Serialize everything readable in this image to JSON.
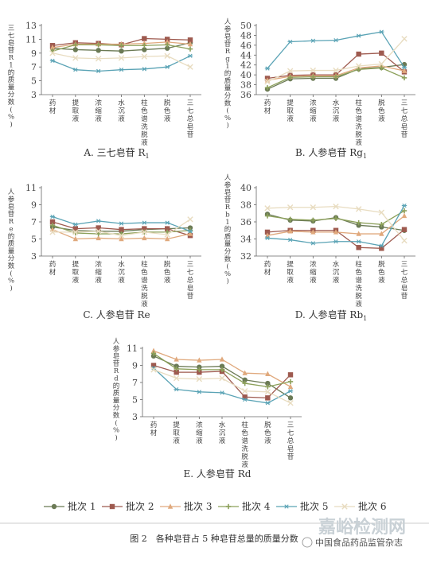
{
  "colors": {
    "batch1": "#6b7a55",
    "batch2": "#9e5a4f",
    "batch3": "#e0a97d",
    "batch4": "#8ca05a",
    "batch5": "#5aa3b5",
    "batch6": "#e8dcc0"
  },
  "legend": [
    "批次 1",
    "批次 2",
    "批次 3",
    "批次 4",
    "批次 5",
    "批次 6"
  ],
  "caption": "图 2　各种皂苷占 5 种皂苷总量的质量分数",
  "watermark": {
    "site": "嘉峪检测网",
    "source": "中国食品药品监管杂志"
  },
  "chart_data": [
    {
      "type": "line",
      "panel": "A",
      "title": "A. 三七皂苷 R",
      "title_sub": "1",
      "ylabel_lines": [
        "三七皂苷",
        "R1 的质量分数",
        "(%)"
      ],
      "categories": [
        "药材",
        "提取液",
        "浓缩液",
        "水沉液",
        "柱色谱洗脱液",
        "脱色液",
        "三七总皂苷"
      ],
      "ylim": [
        3,
        13
      ],
      "yticks": [
        3,
        5,
        7,
        9,
        11,
        13
      ],
      "series": [
        {
          "name": "批次 1",
          "values": [
            9.7,
            9.5,
            9.4,
            9.3,
            9.5,
            9.7,
            10.5
          ]
        },
        {
          "name": "批次 2",
          "values": [
            10.1,
            10.5,
            10.4,
            10.2,
            11.1,
            11.0,
            10.9
          ]
        },
        {
          "name": "批次 3",
          "values": [
            9.8,
            10.3,
            10.3,
            10.3,
            10.4,
            10.6,
            10.3
          ]
        },
        {
          "name": "批次 4",
          "values": [
            9.3,
            10.2,
            10.2,
            10.1,
            10.1,
            10.2,
            9.6
          ]
        },
        {
          "name": "批次 5",
          "values": [
            7.9,
            6.6,
            6.4,
            6.6,
            6.7,
            7.0,
            8.6
          ]
        },
        {
          "name": "批次 6",
          "values": [
            9.0,
            8.3,
            8.2,
            8.3,
            8.5,
            8.6,
            7.0
          ]
        }
      ]
    },
    {
      "type": "line",
      "panel": "B",
      "title": "B. 人参皂苷 Rg",
      "title_sub": "1",
      "ylabel_lines": [
        "人参皂苷",
        "Rg1 的质量分数",
        "(%)"
      ],
      "categories": [
        "药材",
        "提取液",
        "浓缩液",
        "水沉液",
        "柱色谱洗脱液",
        "脱色液",
        "三七总皂苷"
      ],
      "ylim": [
        36,
        50
      ],
      "yticks": [
        36,
        38,
        40,
        42,
        44,
        46,
        48,
        50
      ],
      "series": [
        {
          "name": "批次 1",
          "values": [
            37.1,
            39.2,
            39.3,
            39.3,
            41.2,
            41.5,
            42.1
          ]
        },
        {
          "name": "批次 2",
          "values": [
            39.3,
            39.9,
            40.0,
            40.0,
            44.2,
            44.4,
            40.6
          ]
        },
        {
          "name": "批次 3",
          "values": [
            38.9,
            39.7,
            39.8,
            39.8,
            41.4,
            41.8,
            40.8
          ]
        },
        {
          "name": "批次 4",
          "values": [
            37.4,
            39.5,
            39.6,
            39.6,
            41.1,
            41.4,
            39.4
          ]
        },
        {
          "name": "批次 5",
          "values": [
            41.3,
            46.7,
            46.9,
            47.0,
            47.9,
            48.7,
            41.5
          ]
        },
        {
          "name": "批次 6",
          "values": [
            38.6,
            40.8,
            40.9,
            40.9,
            41.8,
            42.2,
            47.3
          ]
        }
      ]
    },
    {
      "type": "line",
      "panel": "C",
      "title": "C. 人参皂苷 Re",
      "ylabel_lines": [
        "人参皂苷",
        "Re 的质量分数",
        "(%)"
      ],
      "categories": [
        "药材",
        "提取液",
        "浓缩液",
        "水沉液",
        "柱色谱洗脱液",
        "脱色液",
        "三七总皂苷"
      ],
      "ylim": [
        3,
        11
      ],
      "yticks": [
        3,
        5,
        7,
        9,
        11
      ],
      "series": [
        {
          "name": "批次 1",
          "values": [
            6.4,
            6.0,
            5.9,
            5.9,
            6.1,
            6.2,
            6.3
          ]
        },
        {
          "name": "批次 2",
          "values": [
            7.0,
            6.2,
            6.3,
            6.1,
            6.2,
            6.2,
            5.4
          ]
        },
        {
          "name": "批次 3",
          "values": [
            6.1,
            5.0,
            5.1,
            5.0,
            5.1,
            5.0,
            5.6
          ]
        },
        {
          "name": "批次 4",
          "values": [
            6.6,
            5.7,
            5.6,
            5.6,
            5.8,
            5.8,
            6.0
          ]
        },
        {
          "name": "批次 5",
          "values": [
            7.6,
            6.7,
            7.1,
            6.8,
            6.9,
            6.9,
            5.9
          ]
        },
        {
          "name": "批次 6",
          "values": [
            5.8,
            5.8,
            5.9,
            5.4,
            5.8,
            5.5,
            7.3
          ]
        }
      ]
    },
    {
      "type": "line",
      "panel": "D",
      "title": "D. 人参皂苷 Rb",
      "title_sub": "1",
      "ylabel_lines": [
        "人参皂苷",
        "Rb1 的质量分数",
        "(%)"
      ],
      "categories": [
        "药材",
        "提取液",
        "浓缩液",
        "水沉液",
        "柱色谱洗脱液",
        "脱色液",
        "三七总皂苷"
      ],
      "ylim": [
        32,
        40
      ],
      "yticks": [
        32,
        34,
        36,
        38,
        40
      ],
      "series": [
        {
          "name": "批次 1",
          "values": [
            36.9,
            36.2,
            36.1,
            36.5,
            35.6,
            35.4,
            35.0
          ]
        },
        {
          "name": "批次 2",
          "values": [
            34.8,
            35.0,
            35.0,
            35.0,
            33.0,
            32.9,
            35.1
          ]
        },
        {
          "name": "批次 3",
          "values": [
            34.4,
            34.9,
            34.8,
            34.8,
            34.6,
            34.6,
            36.7
          ]
        },
        {
          "name": "批次 4",
          "values": [
            36.7,
            36.3,
            36.2,
            36.4,
            35.9,
            35.7,
            37.3
          ]
        },
        {
          "name": "批次 5",
          "values": [
            34.1,
            33.9,
            33.5,
            33.7,
            33.7,
            33.2,
            37.9
          ]
        },
        {
          "name": "批次 6",
          "values": [
            37.6,
            37.7,
            37.7,
            37.8,
            37.5,
            37.1,
            33.8
          ]
        }
      ]
    },
    {
      "type": "line",
      "panel": "E",
      "title": "E. 人参皂苷 Rd",
      "ylabel_lines": [
        "人参皂苷",
        "Rd 的质量分数",
        "(%)"
      ],
      "categories": [
        "药材",
        "提取液",
        "浓缩液",
        "水沉液",
        "柱色谱洗脱液",
        "脱色液",
        "三七总皂苷"
      ],
      "ylim": [
        3,
        11
      ],
      "yticks": [
        3,
        5,
        7,
        9,
        11
      ],
      "series": [
        {
          "name": "批次 1",
          "values": [
            10.1,
            8.9,
            8.8,
            8.9,
            7.3,
            6.9,
            5.2
          ]
        },
        {
          "name": "批次 2",
          "values": [
            9.0,
            8.2,
            8.2,
            8.3,
            5.3,
            5.2,
            7.9
          ]
        },
        {
          "name": "批次 3",
          "values": [
            10.7,
            9.7,
            9.6,
            9.7,
            8.1,
            8.0,
            6.5
          ]
        },
        {
          "name": "批次 4",
          "values": [
            10.4,
            8.6,
            8.5,
            8.5,
            6.9,
            6.5,
            7.1
          ]
        },
        {
          "name": "批次 5",
          "values": [
            8.7,
            6.2,
            5.9,
            5.8,
            5.0,
            4.6,
            6.0
          ]
        },
        {
          "name": "批次 6",
          "values": [
            8.5,
            7.5,
            7.4,
            7.5,
            6.0,
            5.9,
            4.6
          ]
        }
      ]
    }
  ]
}
